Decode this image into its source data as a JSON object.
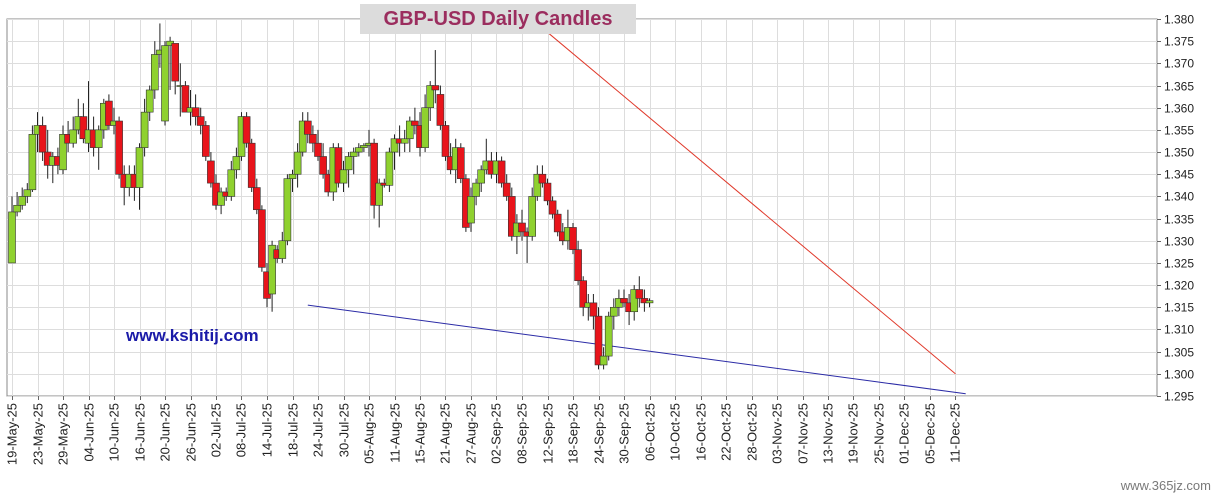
{
  "header": {
    "title": "GBP-USD Daily Candles"
  },
  "watermark": "www.kshitij.com",
  "corner_mark": "www.365jz.com",
  "colors": {
    "bull": "#8fd12f",
    "bear": "#e8141b",
    "wick": "#222222",
    "upper_trendline": "#e0392b",
    "lower_trendline": "#2b2ba6",
    "title": "#9b2d5e"
  },
  "chart_data": {
    "type": "candlestick",
    "title": "GBP-USD Daily Candles",
    "ylim": [
      1.295,
      1.38
    ],
    "ytick_labels": [
      "1.295",
      "1.300",
      "1.305",
      "1.310",
      "1.315",
      "1.320",
      "1.325",
      "1.330",
      "1.335",
      "1.340",
      "1.345",
      "1.350",
      "1.355",
      "1.360",
      "1.365",
      "1.370",
      "1.375",
      "1.380"
    ],
    "yticks": [
      1.295,
      1.3,
      1.305,
      1.31,
      1.315,
      1.32,
      1.325,
      1.33,
      1.335,
      1.34,
      1.345,
      1.35,
      1.355,
      1.36,
      1.365,
      1.37,
      1.375,
      1.38
    ],
    "xtick_labels": [
      "19-May-25",
      "23-May-25",
      "29-May-25",
      "04-Jun-25",
      "10-Jun-25",
      "16-Jun-25",
      "20-Jun-25",
      "26-Jun-25",
      "02-Jul-25",
      "08-Jul-25",
      "14-Jul-25",
      "18-Jul-25",
      "24-Jul-25",
      "30-Jul-25",
      "05-Aug-25",
      "11-Aug-25",
      "15-Aug-25",
      "21-Aug-25",
      "27-Aug-25",
      "02-Sep-25",
      "08-Sep-25",
      "12-Sep-25",
      "18-Sep-25",
      "24-Sep-25",
      "30-Sep-25",
      "06-Oct-25",
      "10-Oct-25",
      "16-Oct-25",
      "22-Oct-25",
      "28-Oct-25",
      "03-Nov-25",
      "07-Nov-25",
      "13-Nov-25",
      "19-Nov-25",
      "25-Nov-25",
      "01-Dec-25",
      "05-Dec-25",
      "11-Dec-25"
    ],
    "xtick_index": [
      0,
      5,
      10,
      15,
      20,
      25,
      30,
      35,
      40,
      45,
      50,
      55,
      60,
      65,
      70,
      75,
      80,
      85,
      90,
      95,
      100,
      105,
      110,
      115,
      120,
      125,
      130,
      135,
      140,
      145,
      150,
      155,
      160,
      165,
      170,
      175,
      180,
      185
    ],
    "candles": [
      {
        "o": 1.325,
        "h": 1.34,
        "l": 1.325,
        "c": 1.3365
      },
      {
        "o": 1.3365,
        "h": 1.341,
        "l": 1.3355,
        "c": 1.338
      },
      {
        "o": 1.338,
        "h": 1.342,
        "l": 1.337,
        "c": 1.34
      },
      {
        "o": 1.34,
        "h": 1.343,
        "l": 1.3385,
        "c": 1.3415
      },
      {
        "o": 1.3415,
        "h": 1.356,
        "l": 1.341,
        "c": 1.354
      },
      {
        "o": 1.354,
        "h": 1.359,
        "l": 1.35,
        "c": 1.356
      },
      {
        "o": 1.356,
        "h": 1.358,
        "l": 1.348,
        "c": 1.35
      },
      {
        "o": 1.35,
        "h": 1.355,
        "l": 1.344,
        "c": 1.347
      },
      {
        "o": 1.347,
        "h": 1.35,
        "l": 1.343,
        "c": 1.349
      },
      {
        "o": 1.349,
        "h": 1.351,
        "l": 1.345,
        "c": 1.347
      },
      {
        "o": 1.346,
        "h": 1.356,
        "l": 1.345,
        "c": 1.354
      },
      {
        "o": 1.354,
        "h": 1.357,
        "l": 1.35,
        "c": 1.352
      },
      {
        "o": 1.352,
        "h": 1.358,
        "l": 1.351,
        "c": 1.355
      },
      {
        "o": 1.355,
        "h": 1.362,
        "l": 1.354,
        "c": 1.358
      },
      {
        "o": 1.358,
        "h": 1.361,
        "l": 1.352,
        "c": 1.353
      },
      {
        "o": 1.352,
        "h": 1.366,
        "l": 1.35,
        "c": 1.355
      },
      {
        "o": 1.355,
        "h": 1.358,
        "l": 1.349,
        "c": 1.351
      },
      {
        "o": 1.351,
        "h": 1.356,
        "l": 1.346,
        "c": 1.355
      },
      {
        "o": 1.355,
        "h": 1.362,
        "l": 1.353,
        "c": 1.361
      },
      {
        "o": 1.3615,
        "h": 1.363,
        "l": 1.355,
        "c": 1.356
      },
      {
        "o": 1.356,
        "h": 1.36,
        "l": 1.354,
        "c": 1.357
      },
      {
        "o": 1.357,
        "h": 1.358,
        "l": 1.344,
        "c": 1.345
      },
      {
        "o": 1.345,
        "h": 1.347,
        "l": 1.338,
        "c": 1.342
      },
      {
        "o": 1.342,
        "h": 1.347,
        "l": 1.34,
        "c": 1.345
      },
      {
        "o": 1.345,
        "h": 1.347,
        "l": 1.339,
        "c": 1.342
      },
      {
        "o": 1.342,
        "h": 1.352,
        "l": 1.337,
        "c": 1.351
      },
      {
        "o": 1.351,
        "h": 1.362,
        "l": 1.349,
        "c": 1.359
      },
      {
        "o": 1.359,
        "h": 1.365,
        "l": 1.357,
        "c": 1.364
      },
      {
        "o": 1.364,
        "h": 1.375,
        "l": 1.362,
        "c": 1.372
      },
      {
        "o": 1.372,
        "h": 1.379,
        "l": 1.369,
        "c": 1.373
      },
      {
        "o": 1.357,
        "h": 1.375,
        "l": 1.356,
        "c": 1.374
      },
      {
        "o": 1.374,
        "h": 1.376,
        "l": 1.364,
        "c": 1.375
      },
      {
        "o": 1.3745,
        "h": 1.3745,
        "l": 1.363,
        "c": 1.366
      },
      {
        "o": 1.365,
        "h": 1.37,
        "l": 1.358,
        "c": 1.365
      },
      {
        "o": 1.365,
        "h": 1.366,
        "l": 1.359,
        "c": 1.359
      },
      {
        "o": 1.359,
        "h": 1.364,
        "l": 1.356,
        "c": 1.36
      },
      {
        "o": 1.36,
        "h": 1.363,
        "l": 1.356,
        "c": 1.358
      },
      {
        "o": 1.358,
        "h": 1.36,
        "l": 1.354,
        "c": 1.356
      },
      {
        "o": 1.356,
        "h": 1.357,
        "l": 1.348,
        "c": 1.349
      },
      {
        "o": 1.348,
        "h": 1.35,
        "l": 1.342,
        "c": 1.343
      },
      {
        "o": 1.343,
        "h": 1.345,
        "l": 1.337,
        "c": 1.338
      },
      {
        "o": 1.338,
        "h": 1.342,
        "l": 1.336,
        "c": 1.341
      },
      {
        "o": 1.341,
        "h": 1.342,
        "l": 1.339,
        "c": 1.34
      },
      {
        "o": 1.34,
        "h": 1.348,
        "l": 1.339,
        "c": 1.346
      },
      {
        "o": 1.346,
        "h": 1.351,
        "l": 1.344,
        "c": 1.349
      },
      {
        "o": 1.349,
        "h": 1.359,
        "l": 1.348,
        "c": 1.358
      },
      {
        "o": 1.358,
        "h": 1.359,
        "l": 1.351,
        "c": 1.352
      },
      {
        "o": 1.352,
        "h": 1.353,
        "l": 1.341,
        "c": 1.342
      },
      {
        "o": 1.342,
        "h": 1.344,
        "l": 1.336,
        "c": 1.337
      },
      {
        "o": 1.337,
        "h": 1.338,
        "l": 1.323,
        "c": 1.324
      },
      {
        "o": 1.323,
        "h": 1.325,
        "l": 1.315,
        "c": 1.317
      },
      {
        "o": 1.318,
        "h": 1.33,
        "l": 1.314,
        "c": 1.329
      },
      {
        "o": 1.328,
        "h": 1.329,
        "l": 1.325,
        "c": 1.326
      },
      {
        "o": 1.326,
        "h": 1.332,
        "l": 1.325,
        "c": 1.33
      },
      {
        "o": 1.33,
        "h": 1.345,
        "l": 1.329,
        "c": 1.344
      },
      {
        "o": 1.344,
        "h": 1.346,
        "l": 1.341,
        "c": 1.345
      },
      {
        "o": 1.345,
        "h": 1.352,
        "l": 1.342,
        "c": 1.35
      },
      {
        "o": 1.35,
        "h": 1.359,
        "l": 1.349,
        "c": 1.357
      },
      {
        "o": 1.357,
        "h": 1.359,
        "l": 1.352,
        "c": 1.354
      },
      {
        "o": 1.354,
        "h": 1.356,
        "l": 1.35,
        "c": 1.352
      },
      {
        "o": 1.352,
        "h": 1.355,
        "l": 1.348,
        "c": 1.349
      },
      {
        "o": 1.349,
        "h": 1.352,
        "l": 1.344,
        "c": 1.345
      },
      {
        "o": 1.345,
        "h": 1.346,
        "l": 1.34,
        "c": 1.341
      },
      {
        "o": 1.341,
        "h": 1.352,
        "l": 1.339,
        "c": 1.351
      },
      {
        "o": 1.351,
        "h": 1.352,
        "l": 1.342,
        "c": 1.343
      },
      {
        "o": 1.343,
        "h": 1.348,
        "l": 1.341,
        "c": 1.346
      },
      {
        "o": 1.346,
        "h": 1.35,
        "l": 1.342,
        "c": 1.349
      },
      {
        "o": 1.349,
        "h": 1.351,
        "l": 1.345,
        "c": 1.35
      },
      {
        "o": 1.35,
        "h": 1.352,
        "l": 1.349,
        "c": 1.351
      },
      {
        "o": 1.351,
        "h": 1.352,
        "l": 1.35,
        "c": 1.3515
      },
      {
        "o": 1.3515,
        "h": 1.355,
        "l": 1.349,
        "c": 1.352
      },
      {
        "o": 1.352,
        "h": 1.353,
        "l": 1.335,
        "c": 1.338
      },
      {
        "o": 1.338,
        "h": 1.344,
        "l": 1.333,
        "c": 1.343
      },
      {
        "o": 1.343,
        "h": 1.344,
        "l": 1.342,
        "c": 1.3425
      },
      {
        "o": 1.3425,
        "h": 1.351,
        "l": 1.341,
        "c": 1.35
      },
      {
        "o": 1.35,
        "h": 1.354,
        "l": 1.346,
        "c": 1.353
      },
      {
        "o": 1.353,
        "h": 1.356,
        "l": 1.349,
        "c": 1.352
      },
      {
        "o": 1.352,
        "h": 1.355,
        "l": 1.35,
        "c": 1.353
      },
      {
        "o": 1.353,
        "h": 1.358,
        "l": 1.35,
        "c": 1.357
      },
      {
        "o": 1.357,
        "h": 1.36,
        "l": 1.354,
        "c": 1.356
      },
      {
        "o": 1.356,
        "h": 1.359,
        "l": 1.349,
        "c": 1.351
      },
      {
        "o": 1.351,
        "h": 1.363,
        "l": 1.35,
        "c": 1.36
      },
      {
        "o": 1.36,
        "h": 1.366,
        "l": 1.357,
        "c": 1.365
      },
      {
        "o": 1.365,
        "h": 1.373,
        "l": 1.361,
        "c": 1.364
      },
      {
        "o": 1.363,
        "h": 1.365,
        "l": 1.355,
        "c": 1.356
      },
      {
        "o": 1.356,
        "h": 1.357,
        "l": 1.348,
        "c": 1.349
      },
      {
        "o": 1.349,
        "h": 1.352,
        "l": 1.345,
        "c": 1.346
      },
      {
        "o": 1.346,
        "h": 1.353,
        "l": 1.343,
        "c": 1.351
      },
      {
        "o": 1.351,
        "h": 1.352,
        "l": 1.343,
        "c": 1.344
      },
      {
        "o": 1.344,
        "h": 1.345,
        "l": 1.332,
        "c": 1.333
      },
      {
        "o": 1.334,
        "h": 1.342,
        "l": 1.332,
        "c": 1.34
      },
      {
        "o": 1.34,
        "h": 1.344,
        "l": 1.338,
        "c": 1.343
      },
      {
        "o": 1.343,
        "h": 1.347,
        "l": 1.341,
        "c": 1.346
      },
      {
        "o": 1.346,
        "h": 1.353,
        "l": 1.345,
        "c": 1.348
      },
      {
        "o": 1.348,
        "h": 1.35,
        "l": 1.344,
        "c": 1.345
      },
      {
        "o": 1.345,
        "h": 1.35,
        "l": 1.343,
        "c": 1.348
      },
      {
        "o": 1.348,
        "h": 1.349,
        "l": 1.342,
        "c": 1.343
      },
      {
        "o": 1.343,
        "h": 1.345,
        "l": 1.339,
        "c": 1.34
      },
      {
        "o": 1.34,
        "h": 1.342,
        "l": 1.33,
        "c": 1.331
      },
      {
        "o": 1.331,
        "h": 1.336,
        "l": 1.327,
        "c": 1.334
      },
      {
        "o": 1.334,
        "h": 1.337,
        "l": 1.33,
        "c": 1.332
      },
      {
        "o": 1.332,
        "h": 1.333,
        "l": 1.325,
        "c": 1.331
      },
      {
        "o": 1.331,
        "h": 1.342,
        "l": 1.33,
        "c": 1.34
      },
      {
        "o": 1.34,
        "h": 1.347,
        "l": 1.339,
        "c": 1.345
      },
      {
        "o": 1.345,
        "h": 1.347,
        "l": 1.342,
        "c": 1.343
      },
      {
        "o": 1.343,
        "h": 1.344,
        "l": 1.338,
        "c": 1.339
      },
      {
        "o": 1.339,
        "h": 1.34,
        "l": 1.335,
        "c": 1.336
      },
      {
        "o": 1.336,
        "h": 1.337,
        "l": 1.331,
        "c": 1.332
      },
      {
        "o": 1.332,
        "h": 1.334,
        "l": 1.329,
        "c": 1.33
      },
      {
        "o": 1.33,
        "h": 1.337,
        "l": 1.328,
        "c": 1.333
      },
      {
        "o": 1.333,
        "h": 1.334,
        "l": 1.327,
        "c": 1.328
      },
      {
        "o": 1.328,
        "h": 1.33,
        "l": 1.32,
        "c": 1.321
      },
      {
        "o": 1.321,
        "h": 1.322,
        "l": 1.313,
        "c": 1.315
      },
      {
        "o": 1.315,
        "h": 1.318,
        "l": 1.312,
        "c": 1.316
      },
      {
        "o": 1.316,
        "h": 1.318,
        "l": 1.31,
        "c": 1.313
      },
      {
        "o": 1.313,
        "h": 1.315,
        "l": 1.301,
        "c": 1.302
      },
      {
        "o": 1.302,
        "h": 1.306,
        "l": 1.301,
        "c": 1.304
      },
      {
        "o": 1.304,
        "h": 1.314,
        "l": 1.303,
        "c": 1.313
      },
      {
        "o": 1.313,
        "h": 1.317,
        "l": 1.31,
        "c": 1.315
      },
      {
        "o": 1.315,
        "h": 1.319,
        "l": 1.313,
        "c": 1.317
      },
      {
        "o": 1.317,
        "h": 1.319,
        "l": 1.315,
        "c": 1.316
      },
      {
        "o": 1.316,
        "h": 1.318,
        "l": 1.311,
        "c": 1.314
      },
      {
        "o": 1.314,
        "h": 1.32,
        "l": 1.312,
        "c": 1.319
      },
      {
        "o": 1.319,
        "h": 1.322,
        "l": 1.315,
        "c": 1.317
      },
      {
        "o": 1.317,
        "h": 1.319,
        "l": 1.314,
        "c": 1.316
      },
      {
        "o": 1.316,
        "h": 1.317,
        "l": 1.315,
        "c": 1.3165
      }
    ],
    "trendlines": [
      {
        "name": "upper",
        "from": {
          "index": 105,
          "price": 1.377
        },
        "to": {
          "index": 185,
          "price": 1.3
        }
      },
      {
        "name": "lower",
        "from": {
          "index": 58,
          "price": 1.3155
        },
        "to": {
          "index": 187,
          "price": 1.2955
        }
      }
    ]
  }
}
